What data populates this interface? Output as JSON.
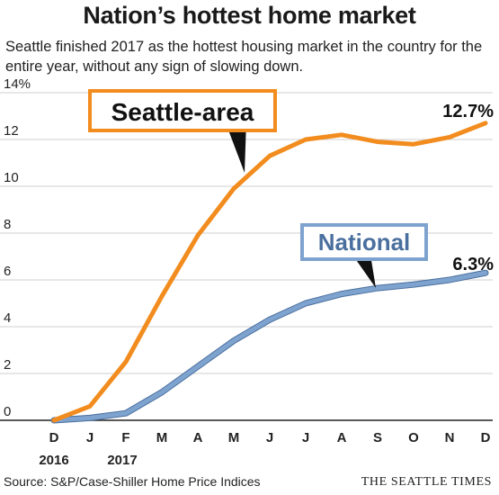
{
  "title": "Nation’s hottest home market",
  "subtitle": "Seattle finished 2017 as the hottest housing market in the country for the entire year, without any sign of slowing down.",
  "source": "Source: S&P/Case-Shiller Home Price Indices",
  "credit": "THE SEATTLE TIMES",
  "chart_data": {
    "type": "line",
    "categories": [
      "D",
      "J",
      "F",
      "M",
      "A",
      "M",
      "J",
      "J",
      "A",
      "S",
      "O",
      "N",
      "D"
    ],
    "year_labels": [
      "2016",
      "2017"
    ],
    "y_ticks": [
      "14%",
      "12",
      "10",
      "8",
      "6",
      "4",
      "2",
      "0"
    ],
    "ylim": [
      0,
      14
    ],
    "grid": true,
    "series": [
      {
        "name": "Seattle-area",
        "color": "#f28c1e",
        "values": [
          0,
          0.6,
          2.5,
          5.3,
          7.9,
          9.9,
          11.3,
          12.0,
          12.2,
          11.9,
          11.8,
          12.1,
          12.7
        ],
        "end_label": "12.7%"
      },
      {
        "name": "National",
        "color": "#7fa3cf",
        "values": [
          0,
          0.1,
          0.3,
          1.2,
          2.3,
          3.4,
          4.3,
          5.0,
          5.4,
          5.65,
          5.8,
          6.0,
          6.3
        ],
        "end_label": "6.3%"
      }
    ]
  }
}
